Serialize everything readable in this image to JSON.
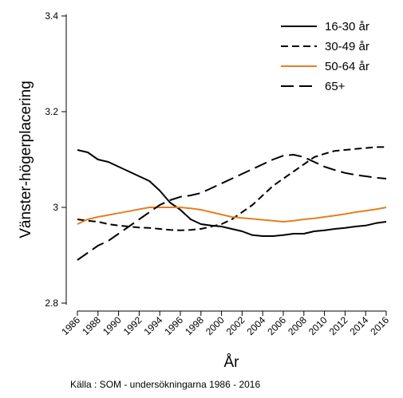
{
  "chart_data": {
    "type": "line",
    "xlabel": "År",
    "ylabel": "Vänster-högerplacering",
    "source": "Källa : SOM - undersökningarna 1986 - 2016",
    "xlim": [
      1986,
      2016
    ],
    "ylim": [
      2.8,
      3.42
    ],
    "x_ticks": [
      "1986",
      "1988",
      "1990",
      "1992",
      "1994",
      "1996",
      "1998",
      "2000",
      "2002",
      "2004",
      "2006",
      "2008",
      "2010",
      "2012",
      "2014",
      "2016"
    ],
    "y_ticks": [
      "2.8",
      "3",
      "3.2",
      "3.4"
    ],
    "y_tick_values": [
      2.8,
      3.0,
      3.2,
      3.4
    ],
    "legend_position": "top-right",
    "x": [
      1986,
      1987,
      1988,
      1989,
      1990,
      1991,
      1992,
      1993,
      1994,
      1995,
      1996,
      1997,
      1998,
      1999,
      2000,
      2001,
      2002,
      2003,
      2004,
      2005,
      2006,
      2007,
      2008,
      2009,
      2010,
      2011,
      2012,
      2013,
      2014,
      2015,
      2016
    ],
    "series": [
      {
        "name": "16-30 år",
        "style": "solid",
        "color": "#000000",
        "values": [
          3.12,
          3.115,
          3.1,
          3.095,
          3.085,
          3.075,
          3.065,
          3.055,
          3.035,
          3.01,
          2.995,
          2.975,
          2.965,
          2.962,
          2.96,
          2.955,
          2.95,
          2.942,
          2.94,
          2.94,
          2.942,
          2.945,
          2.945,
          2.95,
          2.952,
          2.955,
          2.957,
          2.96,
          2.962,
          2.967,
          2.97
        ]
      },
      {
        "name": "30-49 år",
        "style": "dashed",
        "color": "#000000",
        "values": [
          2.975,
          2.972,
          2.97,
          2.965,
          2.962,
          2.96,
          2.958,
          2.957,
          2.955,
          2.953,
          2.952,
          2.953,
          2.955,
          2.96,
          2.965,
          2.975,
          2.99,
          3.005,
          3.025,
          3.045,
          3.06,
          3.075,
          3.09,
          3.105,
          3.112,
          3.118,
          3.12,
          3.122,
          3.124,
          3.126,
          3.126
        ]
      },
      {
        "name": "50-64 år",
        "style": "solid",
        "color": "#e67e22",
        "values": [
          2.965,
          2.975,
          2.98,
          2.984,
          2.988,
          2.992,
          2.996,
          3.0,
          3.0,
          3.0,
          3.0,
          2.998,
          2.995,
          2.99,
          2.985,
          2.98,
          2.978,
          2.976,
          2.974,
          2.972,
          2.97,
          2.972,
          2.975,
          2.977,
          2.98,
          2.983,
          2.986,
          2.99,
          2.993,
          2.996,
          3.0
        ]
      },
      {
        "name": "65+",
        "style": "longdash",
        "color": "#000000",
        "values": [
          2.89,
          2.905,
          2.92,
          2.93,
          2.945,
          2.96,
          2.975,
          2.99,
          3.005,
          3.015,
          3.022,
          3.025,
          3.03,
          3.04,
          3.05,
          3.06,
          3.07,
          3.08,
          3.09,
          3.1,
          3.108,
          3.11,
          3.105,
          3.095,
          3.085,
          3.078,
          3.072,
          3.068,
          3.065,
          3.062,
          3.06
        ]
      }
    ]
  }
}
